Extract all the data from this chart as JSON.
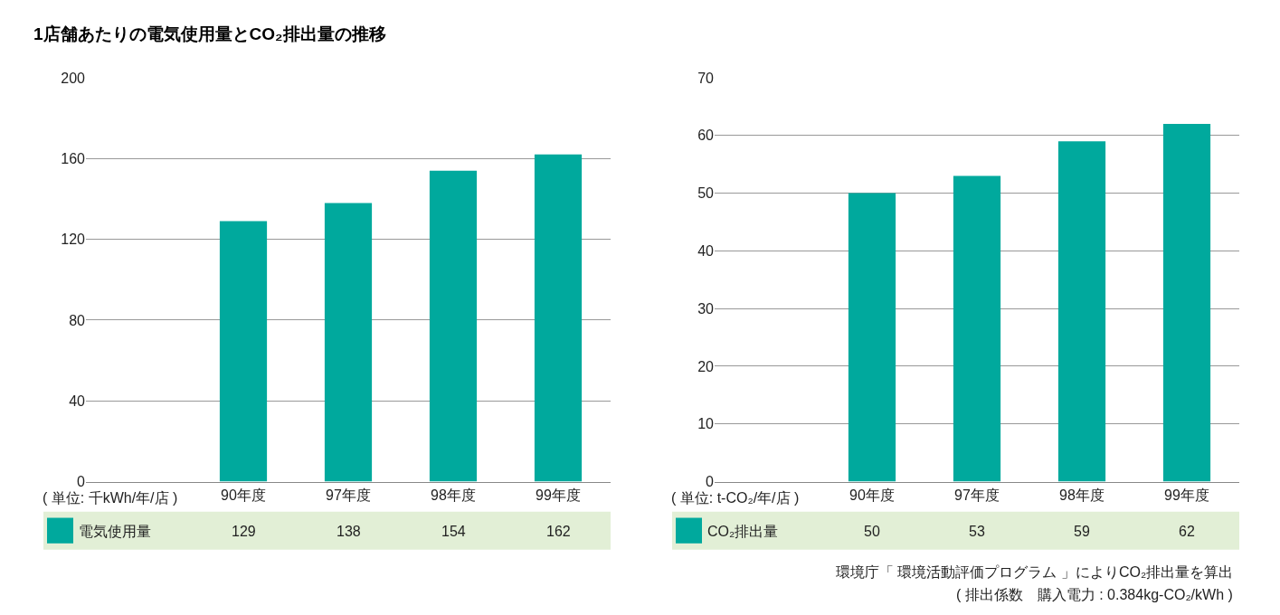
{
  "chart_data": [
    {
      "type": "bar",
      "title": "1店舗あたりの電気使用量とCO₂排出量の推移",
      "ylabel": "( 単位: 千kWh/年/店 )",
      "categories": [
        "90年度",
        "97年度",
        "98年度",
        "99年度"
      ],
      "series": [
        {
          "name": "電気使用量",
          "color": "#00a99d",
          "values": [
            129,
            138,
            154,
            162
          ]
        }
      ],
      "ylim": [
        0,
        200
      ],
      "yticks": [
        0,
        40,
        80,
        120,
        160,
        200
      ],
      "grid": "y",
      "data_labels": true
    },
    {
      "type": "bar",
      "ylabel": "( 単位: t-CO₂/年/店 )",
      "categories": [
        "90年度",
        "97年度",
        "98年度",
        "99年度"
      ],
      "series": [
        {
          "name": "CO₂排出量",
          "color": "#00a99d",
          "values": [
            50,
            53,
            59,
            62
          ]
        }
      ],
      "ylim": [
        0,
        70
      ],
      "yticks": [
        0,
        10,
        20,
        30,
        40,
        50,
        60,
        70
      ],
      "grid": "y",
      "data_labels": true,
      "annotations": [
        "環境庁「 環境活動評価プログラム 」によりCO₂排出量を算出",
        "( 排出係数　購入電力 : 0.384kg-CO₂/kWh )"
      ]
    }
  ]
}
